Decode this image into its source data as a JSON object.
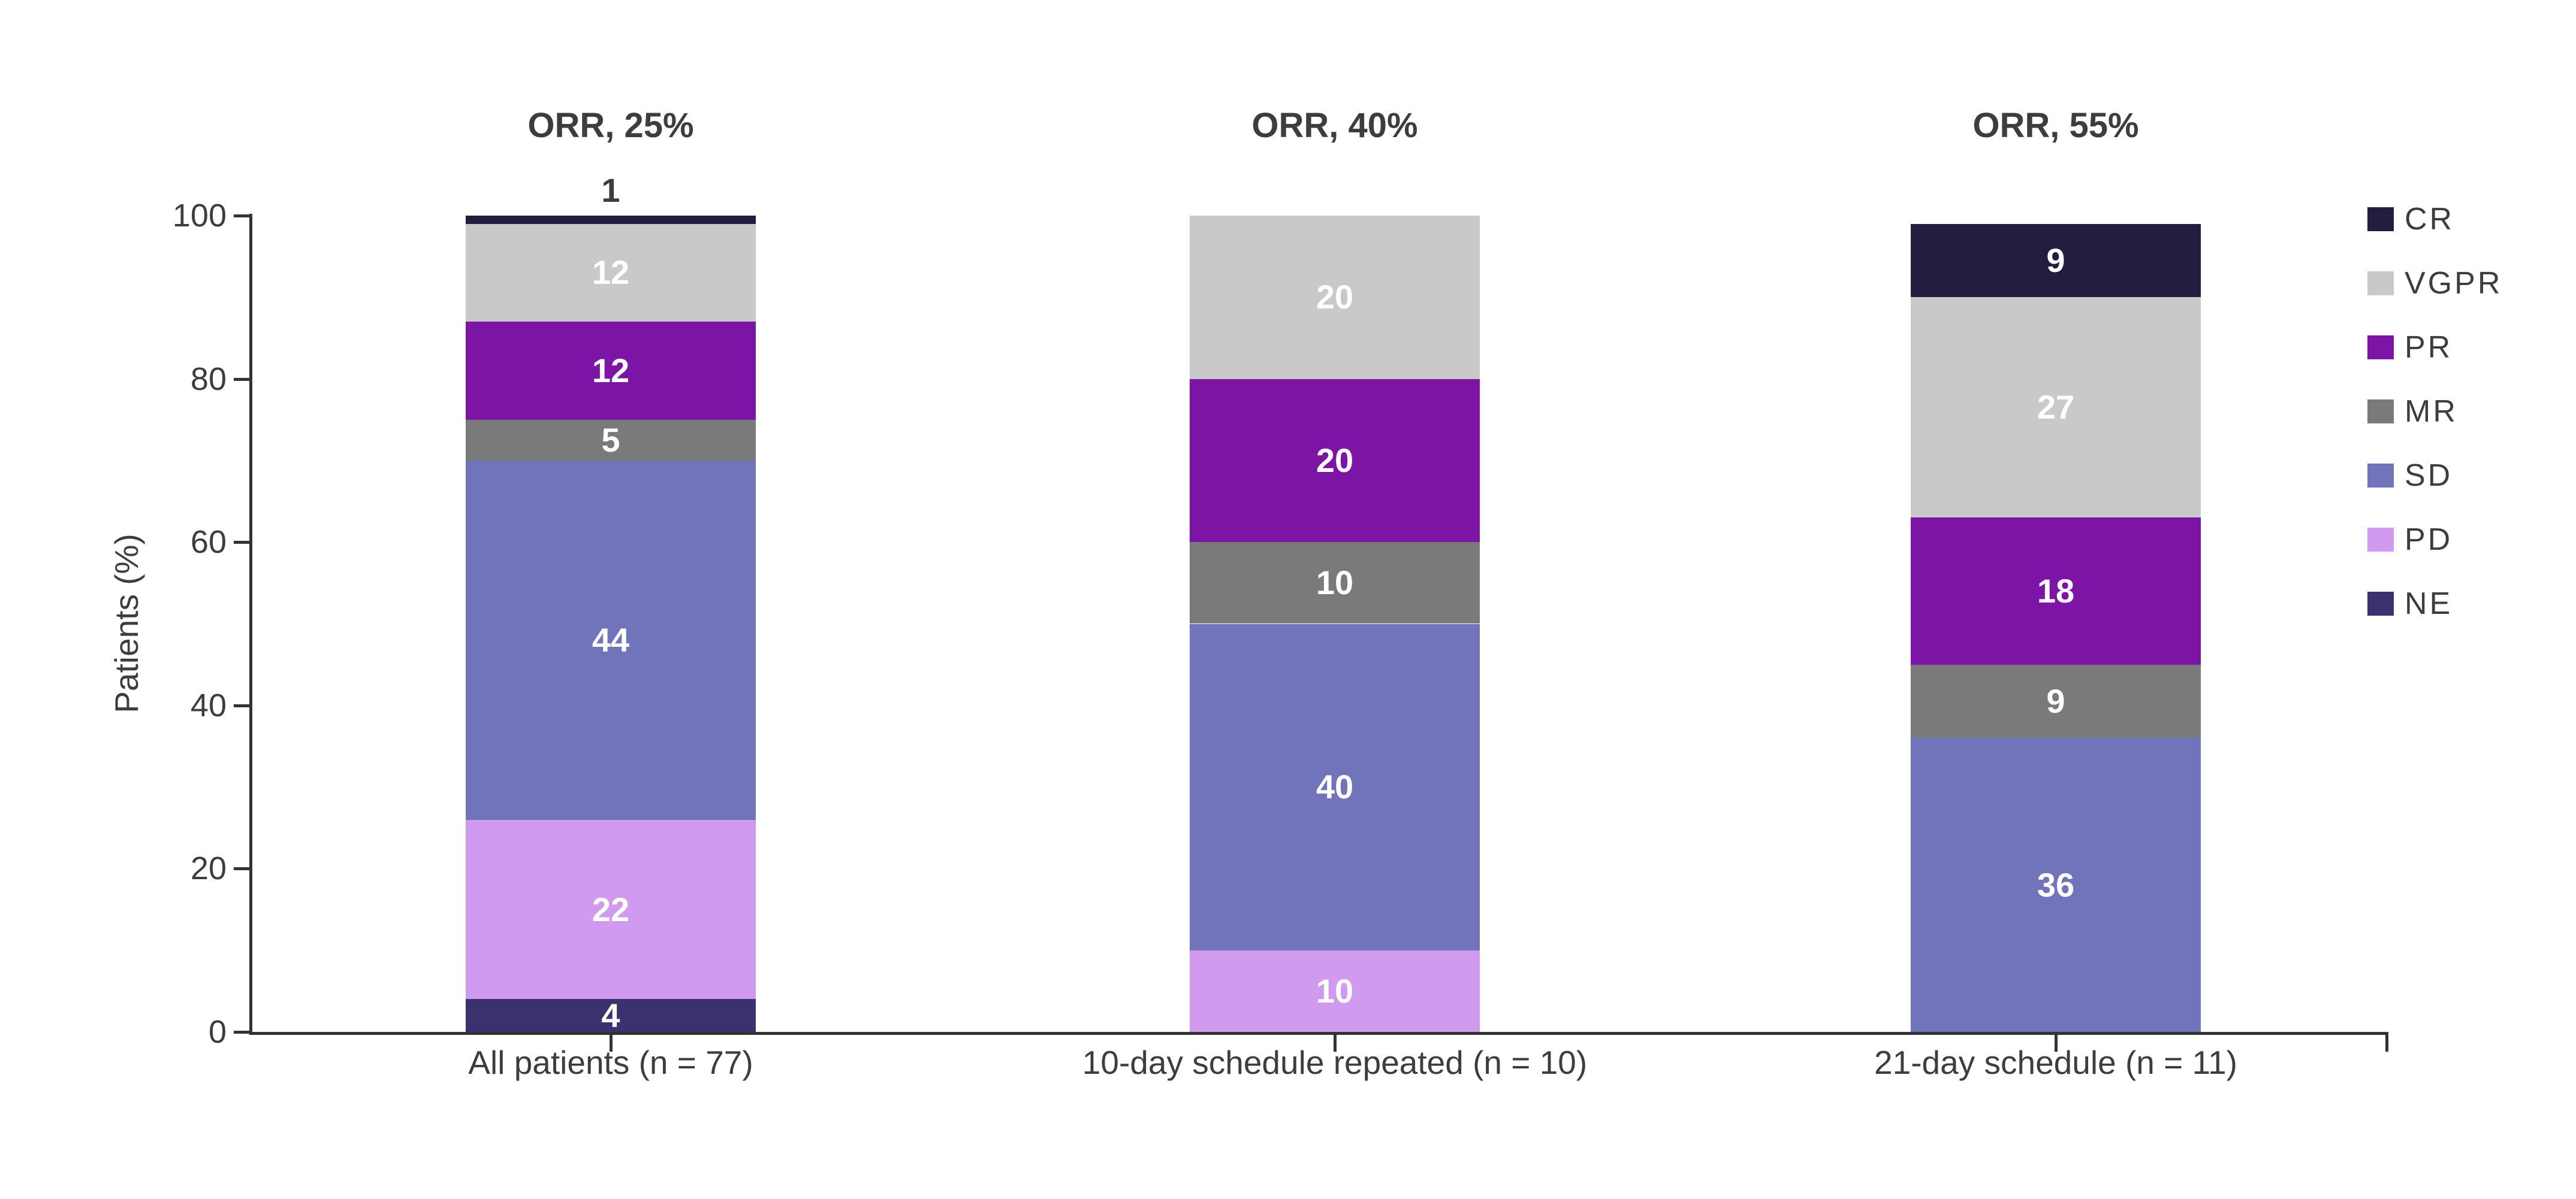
{
  "chart_data": {
    "type": "bar",
    "stacked": true,
    "ylabel": "Patients (%)",
    "ylim": [
      0,
      100
    ],
    "yticks": [
      0,
      20,
      40,
      60,
      80,
      100
    ],
    "grid": false,
    "legend_position": "right",
    "categories": [
      "All patients (n = 77)",
      "10-day schedule repeated (n = 10)",
      "21-day schedule (n = 11)"
    ],
    "orr_annotations": [
      "ORR, 25%",
      "ORR, 40%",
      "ORR, 55%"
    ],
    "series": [
      {
        "name": "CR",
        "color": "#211e40",
        "values": [
          1,
          0,
          9
        ]
      },
      {
        "name": "VGPR",
        "color": "#c9c9c9",
        "values": [
          12,
          20,
          27
        ]
      },
      {
        "name": "PR",
        "color": "#7c15a6",
        "values": [
          12,
          20,
          18
        ]
      },
      {
        "name": "MR",
        "color": "#7a7a7a",
        "values": [
          5,
          10,
          9
        ]
      },
      {
        "name": "SD",
        "color": "#7174bb",
        "values": [
          44,
          40,
          36
        ]
      },
      {
        "name": "PD",
        "color": "#d09aee",
        "values": [
          22,
          10,
          0
        ]
      },
      {
        "name": "NE",
        "color": "#3a316f",
        "values": [
          4,
          0,
          0
        ]
      }
    ],
    "stack_order_bottom_to_top": [
      "NE",
      "PD",
      "SD",
      "MR",
      "PR",
      "VGPR",
      "CR"
    ],
    "bar_totals": [
      100,
      100,
      99
    ],
    "colors": {
      "text": "#3d3d3d",
      "axis": "#333333",
      "inside_label": "#ffffff",
      "background": "#ffffff"
    }
  }
}
